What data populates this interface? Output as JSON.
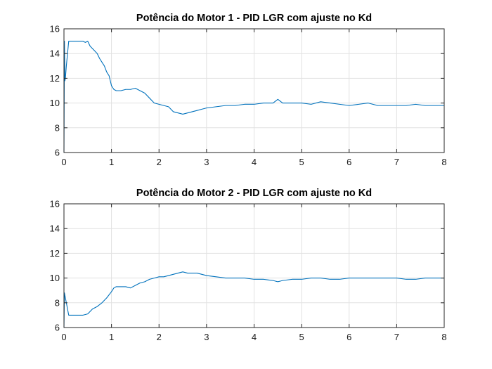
{
  "chart_data": [
    {
      "type": "line",
      "title": "Potência do Motor 1 - PID LGR com ajuste no Kd",
      "xlabel": "",
      "ylabel": "",
      "xlim": [
        0,
        8
      ],
      "ylim": [
        6,
        16
      ],
      "xticks": [
        0,
        1,
        2,
        3,
        4,
        5,
        6,
        7,
        8
      ],
      "yticks": [
        6,
        8,
        10,
        12,
        14,
        16
      ],
      "grid": true,
      "color": "#0072BD",
      "series": [
        {
          "x": [
            0,
            0.01,
            0.02,
            0.03,
            0.05,
            0.08,
            0.1,
            0.12,
            0.15,
            0.2,
            0.3,
            0.4,
            0.45,
            0.5,
            0.55,
            0.6,
            0.65,
            0.7,
            0.75,
            0.8,
            0.85,
            0.9,
            0.95,
            1.0,
            1.05,
            1.1,
            1.2,
            1.3,
            1.4,
            1.5,
            1.6,
            1.7,
            1.8,
            1.9,
            2.0,
            2.1,
            2.2,
            2.3,
            2.4,
            2.5,
            2.6,
            2.7,
            2.8,
            2.9,
            3.0,
            3.2,
            3.4,
            3.6,
            3.8,
            4.0,
            4.2,
            4.4,
            4.5,
            4.6,
            4.8,
            5.0,
            5.2,
            5.4,
            5.6,
            5.8,
            6.0,
            6.2,
            6.4,
            6.6,
            6.8,
            7.0,
            7.2,
            7.4,
            7.6,
            7.8,
            8.0
          ],
          "y": [
            6.0,
            15.0,
            11.8,
            12.0,
            13.0,
            14.2,
            15.0,
            15.0,
            15.0,
            15.0,
            15.0,
            15.0,
            14.9,
            15.0,
            14.6,
            14.4,
            14.2,
            14.0,
            13.6,
            13.3,
            13.0,
            12.5,
            12.2,
            11.4,
            11.1,
            11.0,
            11.0,
            11.1,
            11.1,
            11.2,
            11.0,
            10.8,
            10.4,
            10.0,
            9.9,
            9.8,
            9.7,
            9.3,
            9.2,
            9.1,
            9.2,
            9.3,
            9.4,
            9.5,
            9.6,
            9.7,
            9.8,
            9.8,
            9.9,
            9.9,
            10.0,
            10.0,
            10.3,
            10.0,
            10.0,
            10.0,
            9.9,
            10.1,
            10.0,
            9.9,
            9.8,
            9.9,
            10.0,
            9.8,
            9.8,
            9.8,
            9.8,
            9.9,
            9.8,
            9.8,
            9.8
          ]
        }
      ]
    },
    {
      "type": "line",
      "title": "Potência do Motor 2 - PID LGR com ajuste no Kd",
      "xlabel": "",
      "ylabel": "",
      "xlim": [
        0,
        8
      ],
      "ylim": [
        6,
        16
      ],
      "xticks": [
        0,
        1,
        2,
        3,
        4,
        5,
        6,
        7,
        8
      ],
      "yticks": [
        6,
        8,
        10,
        12,
        14,
        16
      ],
      "grid": true,
      "color": "#0072BD",
      "series": [
        {
          "x": [
            0,
            0.01,
            0.02,
            0.04,
            0.06,
            0.08,
            0.1,
            0.2,
            0.3,
            0.4,
            0.5,
            0.55,
            0.6,
            0.7,
            0.8,
            0.9,
            1.0,
            1.05,
            1.1,
            1.2,
            1.3,
            1.4,
            1.5,
            1.6,
            1.7,
            1.8,
            1.9,
            2.0,
            2.1,
            2.2,
            2.3,
            2.4,
            2.5,
            2.6,
            2.7,
            2.8,
            2.9,
            3.0,
            3.2,
            3.4,
            3.6,
            3.8,
            4.0,
            4.2,
            4.4,
            4.5,
            4.6,
            4.8,
            5.0,
            5.2,
            5.4,
            5.6,
            5.8,
            6.0,
            6.2,
            6.4,
            6.6,
            6.8,
            7.0,
            7.2,
            7.4,
            7.6,
            7.8,
            8.0
          ],
          "y": [
            6.0,
            8.8,
            8.6,
            8.2,
            7.8,
            7.4,
            7.0,
            7.0,
            7.0,
            7.0,
            7.1,
            7.3,
            7.5,
            7.7,
            8.0,
            8.4,
            8.9,
            9.2,
            9.3,
            9.3,
            9.3,
            9.2,
            9.4,
            9.6,
            9.7,
            9.9,
            10.0,
            10.1,
            10.1,
            10.2,
            10.3,
            10.4,
            10.5,
            10.4,
            10.4,
            10.4,
            10.3,
            10.2,
            10.1,
            10.0,
            10.0,
            10.0,
            9.9,
            9.9,
            9.8,
            9.7,
            9.8,
            9.9,
            9.9,
            10.0,
            10.0,
            9.9,
            9.9,
            10.0,
            10.0,
            10.0,
            10.0,
            10.0,
            10.0,
            9.9,
            9.9,
            10.0,
            10.0,
            10.0
          ]
        }
      ]
    }
  ]
}
